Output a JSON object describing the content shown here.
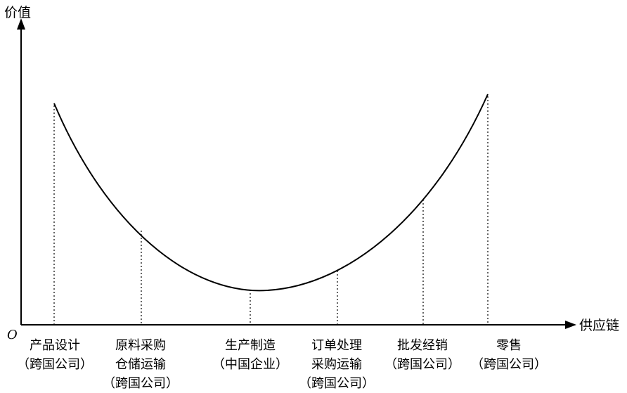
{
  "axes": {
    "y_label": "价值",
    "x_label": "供应链",
    "origin_label": "O"
  },
  "stages": [
    {
      "lines": [
        "产品设计",
        "（跨国公司）"
      ]
    },
    {
      "lines": [
        "原料采购",
        "仓储运输",
        "（跨国公司）"
      ]
    },
    {
      "lines": [
        "生产制造",
        "（中国企业）"
      ]
    },
    {
      "lines": [
        "订单处理",
        "采购运输",
        "（跨国公司）"
      ]
    },
    {
      "lines": [
        "批发经销",
        "（跨国公司）"
      ]
    },
    {
      "lines": [
        "零售",
        "（跨国公司）"
      ]
    }
  ],
  "colors": {
    "stroke": "#000000",
    "background": "#ffffff"
  }
}
